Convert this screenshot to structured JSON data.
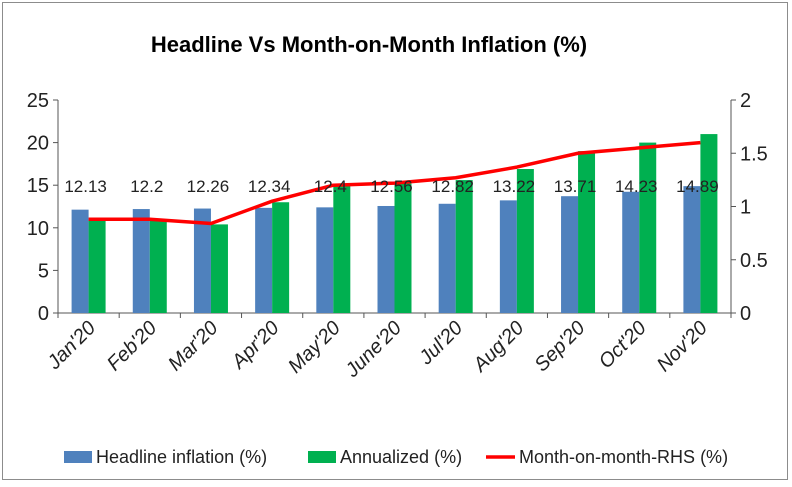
{
  "chart_data": {
    "type": "bar",
    "title": "Headline Vs Month-on-Month Inflation (%)",
    "categories": [
      "Jan'20",
      "Feb'20",
      "Mar'20",
      "Apr'20",
      "May'20",
      "June'20",
      "Jul'20",
      "Aug'20",
      "Sep'20",
      "Oct'20",
      "Nov'20"
    ],
    "series": [
      {
        "name": "Headline inflation (%)",
        "type": "bar",
        "axis": "left",
        "color": "#4f81bd",
        "values": [
          12.13,
          12.2,
          12.26,
          12.34,
          12.4,
          12.56,
          12.82,
          13.22,
          13.71,
          14.23,
          14.89
        ]
      },
      {
        "name": "Annualized (%)",
        "type": "bar",
        "axis": "left",
        "color": "#00b050",
        "values": [
          10.8,
          10.8,
          10.4,
          13.0,
          15.0,
          15.2,
          15.6,
          16.9,
          19.0,
          20.0,
          21.0
        ]
      },
      {
        "name": "Month-on-month-RHS (%)",
        "type": "line",
        "axis": "right",
        "color": "#ff0000",
        "values": [
          0.88,
          0.88,
          0.84,
          1.05,
          1.2,
          1.22,
          1.27,
          1.37,
          1.5,
          1.55,
          1.6
        ]
      }
    ],
    "data_labels": [
      "12.13",
      "12.2",
      "12.26",
      "12.34",
      "12.4",
      "12.56",
      "12.82",
      "13.22",
      "13.71",
      "14.23",
      "14.89"
    ],
    "y_left": {
      "ylim": [
        0,
        25
      ],
      "ticks": [
        "0",
        "5",
        "10",
        "15",
        "20",
        "25"
      ]
    },
    "y_right": {
      "ylim": [
        0,
        2
      ],
      "ticks": [
        "0",
        "0.5",
        "1",
        "1.5",
        "2"
      ]
    },
    "grid": false,
    "legend_position": "bottom"
  }
}
